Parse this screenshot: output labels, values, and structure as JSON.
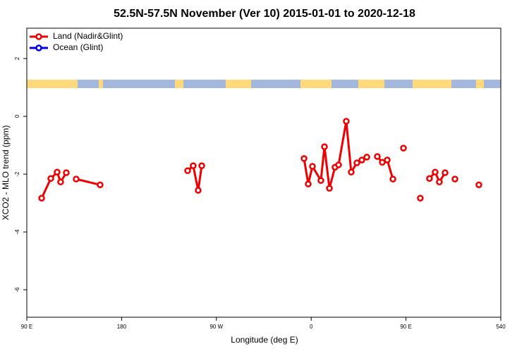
{
  "chart_data": {
    "type": "line",
    "title": "52.5N-57.5N November (Ver 10)   2015-01-01 to 2020-12-18",
    "xlabel": "Longitude (deg E)",
    "ylabel": "XCO2 - MLO trend (ppm)",
    "xlim": [
      90,
      540
    ],
    "ylim": [
      -6.95,
      3.05
    ],
    "xticks": [
      {
        "value": 90,
        "label": "90 E"
      },
      180,
      {
        "value": 270,
        "label": "90 W"
      },
      {
        "value": 360,
        "label": "0"
      },
      {
        "value": 450,
        "label": "90 E"
      },
      540
    ],
    "yticks": [
      -6,
      -4,
      -2,
      0,
      2
    ],
    "legend": "top-left",
    "series": [
      {
        "name": "Land (Nadir&Glint)",
        "color": "#ee0000",
        "x": [
          104.1,
          112.8,
          118.8,
          122.1,
          127.5,
          null,
          136.9,
          159.6,
          null,
          242.7,
          248.0,
          252.7,
          256.1,
          null,
          353.2,
          357.2,
          361.2,
          369.2,
          372.6,
          377.3,
          382.6,
          386.0,
          393.3,
          398.0,
          403.4,
          408.1,
          412.8,
          null,
          422.8,
          427.5,
          432.2,
          437.6,
          null,
          447.6,
          null,
          463.6,
          null,
          472.3,
          477.7,
          481.7,
          487.1,
          null,
          496.5,
          null,
          519.2
        ],
        "values": [
          -2.83,
          -2.15,
          -1.93,
          -2.27,
          -1.95,
          null,
          -2.17,
          -2.37,
          null,
          -1.88,
          -1.71,
          -2.56,
          -1.71,
          null,
          -1.46,
          -2.34,
          -1.73,
          -2.22,
          -1.05,
          -2.49,
          -1.76,
          -1.68,
          -0.17,
          -1.93,
          -1.61,
          -1.51,
          -1.41,
          null,
          -1.39,
          -1.59,
          -1.51,
          -2.17,
          null,
          -1.1,
          null,
          -2.83,
          null,
          -2.15,
          -1.93,
          -2.27,
          -1.95,
          null,
          -2.17,
          null,
          -2.37
        ]
      },
      {
        "name": "Ocean (Glint)",
        "color": "#0000ee",
        "x": [],
        "values": []
      }
    ]
  }
}
